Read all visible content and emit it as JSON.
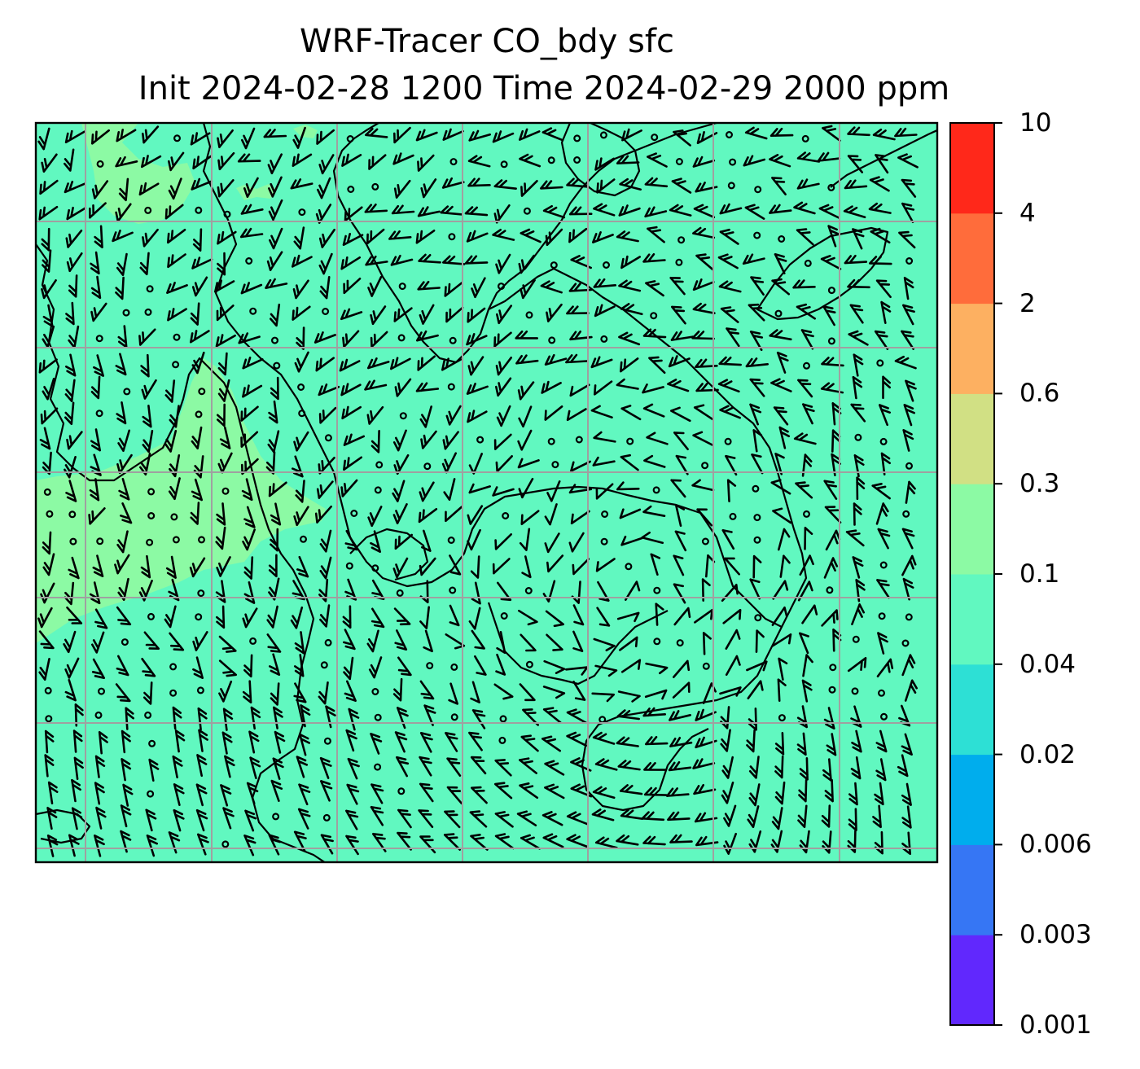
{
  "title": {
    "line1": "WRF-Tracer CO_bdy sfc",
    "line2": "Init 2024-02-28 1200 Time 2024-02-29 2000 ppm"
  },
  "colorbar": {
    "levels": [
      "0.001",
      "0.003",
      "0.006",
      "0.02",
      "0.04",
      "0.1",
      "0.3",
      "0.6",
      "2",
      "4",
      "10"
    ],
    "colors": [
      "#6128fd",
      "#3676f4",
      "#00aded",
      "#2de0d5",
      "#61f8c0",
      "#8cfaa4",
      "#d1e084",
      "#fdb061",
      "#ff6c3b",
      "#ff281a"
    ]
  },
  "map": {
    "background_color": "#61f8c0",
    "higher_color": "#8cfaa4",
    "grid_color": "#a0a0a0",
    "barb_color": "#000000"
  }
}
